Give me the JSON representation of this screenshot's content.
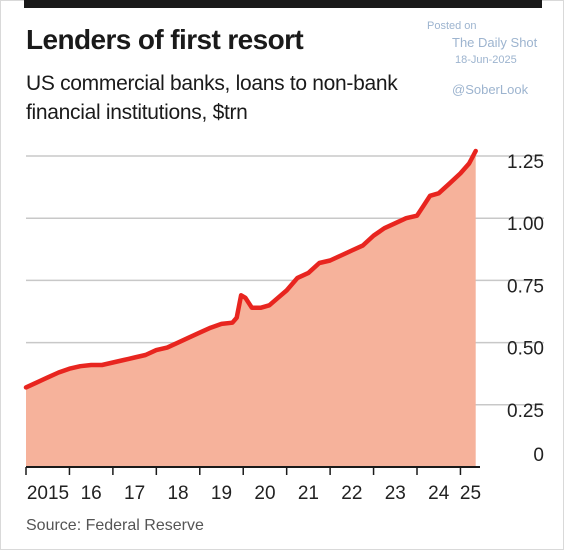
{
  "header": {
    "title": "Lenders of first resort",
    "subtitle": "US commercial banks, loans to non-bank financial institutions, $trn"
  },
  "watermark": {
    "posted": "Posted on",
    "site": "The Daily Shot",
    "date": "18-Jun-2025",
    "handle": "@SoberLook"
  },
  "footer": {
    "source": "Source: Federal Reserve"
  },
  "colors": {
    "line": "#e8251f",
    "fill": "#f6b29b",
    "grid": "#c8c8c8",
    "axis": "#1a1a1a",
    "watermark": "#9db4cf"
  },
  "chart_data": {
    "type": "area",
    "title": "Lenders of first resort",
    "subtitle": "US commercial banks, loans to non-bank financial institutions, $trn",
    "ylabel": "",
    "xlabel": "",
    "y_ticks": [
      0,
      0.25,
      0.5,
      0.75,
      1.0,
      1.25
    ],
    "y_tick_labels": [
      "0",
      "0.25",
      "0.50",
      "0.75",
      "1.00",
      "1.25"
    ],
    "ylim": [
      0,
      1.25
    ],
    "x_tick_labels": [
      "2015",
      "16",
      "17",
      "18",
      "19",
      "20",
      "21",
      "22",
      "23",
      "24",
      "25"
    ],
    "x_range": [
      2015.0,
      2025.45
    ],
    "grid": true,
    "y_axis_side": "right",
    "series": [
      {
        "values": [
          [
            2015.0,
            0.32
          ],
          [
            2015.25,
            0.34
          ],
          [
            2015.5,
            0.36
          ],
          [
            2015.75,
            0.38
          ],
          [
            2016.0,
            0.395
          ],
          [
            2016.25,
            0.405
          ],
          [
            2016.5,
            0.41
          ],
          [
            2016.75,
            0.41
          ],
          [
            2017.0,
            0.42
          ],
          [
            2017.25,
            0.43
          ],
          [
            2017.5,
            0.44
          ],
          [
            2017.75,
            0.45
          ],
          [
            2018.0,
            0.47
          ],
          [
            2018.25,
            0.48
          ],
          [
            2018.5,
            0.5
          ],
          [
            2018.75,
            0.52
          ],
          [
            2019.0,
            0.54
          ],
          [
            2019.25,
            0.56
          ],
          [
            2019.5,
            0.575
          ],
          [
            2019.75,
            0.58
          ],
          [
            2019.85,
            0.6
          ],
          [
            2019.95,
            0.69
          ],
          [
            2020.05,
            0.68
          ],
          [
            2020.2,
            0.64
          ],
          [
            2020.4,
            0.64
          ],
          [
            2020.6,
            0.65
          ],
          [
            2020.8,
            0.68
          ],
          [
            2021.0,
            0.71
          ],
          [
            2021.25,
            0.76
          ],
          [
            2021.5,
            0.78
          ],
          [
            2021.75,
            0.82
          ],
          [
            2022.0,
            0.83
          ],
          [
            2022.25,
            0.85
          ],
          [
            2022.5,
            0.87
          ],
          [
            2022.75,
            0.89
          ],
          [
            2023.0,
            0.93
          ],
          [
            2023.25,
            0.96
          ],
          [
            2023.5,
            0.98
          ],
          [
            2023.75,
            1.0
          ],
          [
            2024.0,
            1.01
          ],
          [
            2024.15,
            1.05
          ],
          [
            2024.3,
            1.09
          ],
          [
            2024.5,
            1.1
          ],
          [
            2024.75,
            1.14
          ],
          [
            2025.0,
            1.18
          ],
          [
            2025.2,
            1.22
          ],
          [
            2025.35,
            1.27
          ]
        ]
      }
    ]
  }
}
